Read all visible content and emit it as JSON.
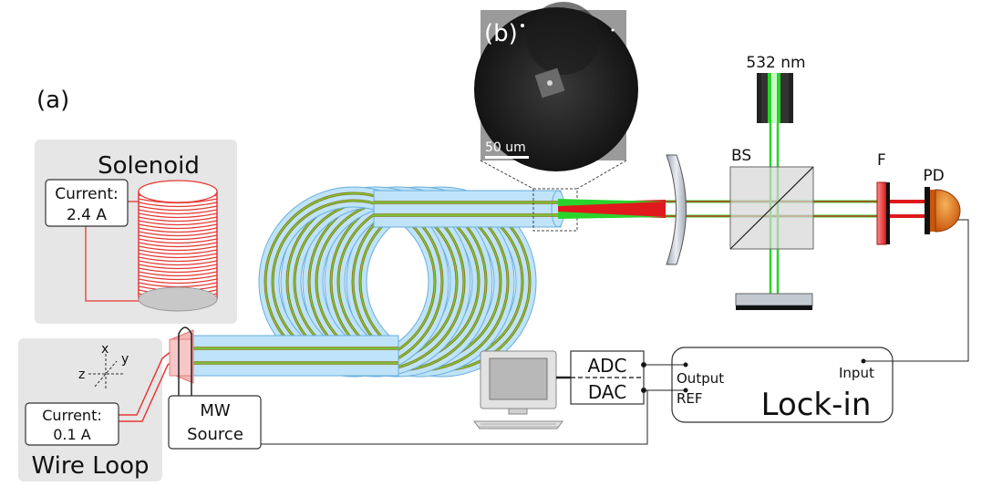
{
  "panels": {
    "a": "(a)",
    "b": "(b)"
  },
  "solenoid": {
    "title": "Solenoid",
    "current_label": "Current:",
    "current_value": "2.4 A"
  },
  "wire_loop": {
    "title": "Wire Loop",
    "current_label": "Current:",
    "current_value": "0.1 A"
  },
  "axes": {
    "x": "x",
    "y": "y",
    "z": "z"
  },
  "mw_source": {
    "line1": "MW",
    "line2": "Source"
  },
  "microscope": {
    "scale_bar": "50 um"
  },
  "optics": {
    "laser": "532 nm",
    "beamsplitter": "BS",
    "filter": "F",
    "photodiode": "PD"
  },
  "daq": {
    "adc": "ADC",
    "dac": "DAC"
  },
  "lockin": {
    "title": "Lock-in",
    "input": "Input",
    "output": "Output",
    "ref": "REF"
  },
  "colors": {
    "fiber": "#bfe3f8",
    "fiber_edge": "#6aaede",
    "green": "#2bd42b",
    "red": "#e0191c",
    "coil": "#e53935",
    "panel_bg": "#e6e6e6"
  }
}
